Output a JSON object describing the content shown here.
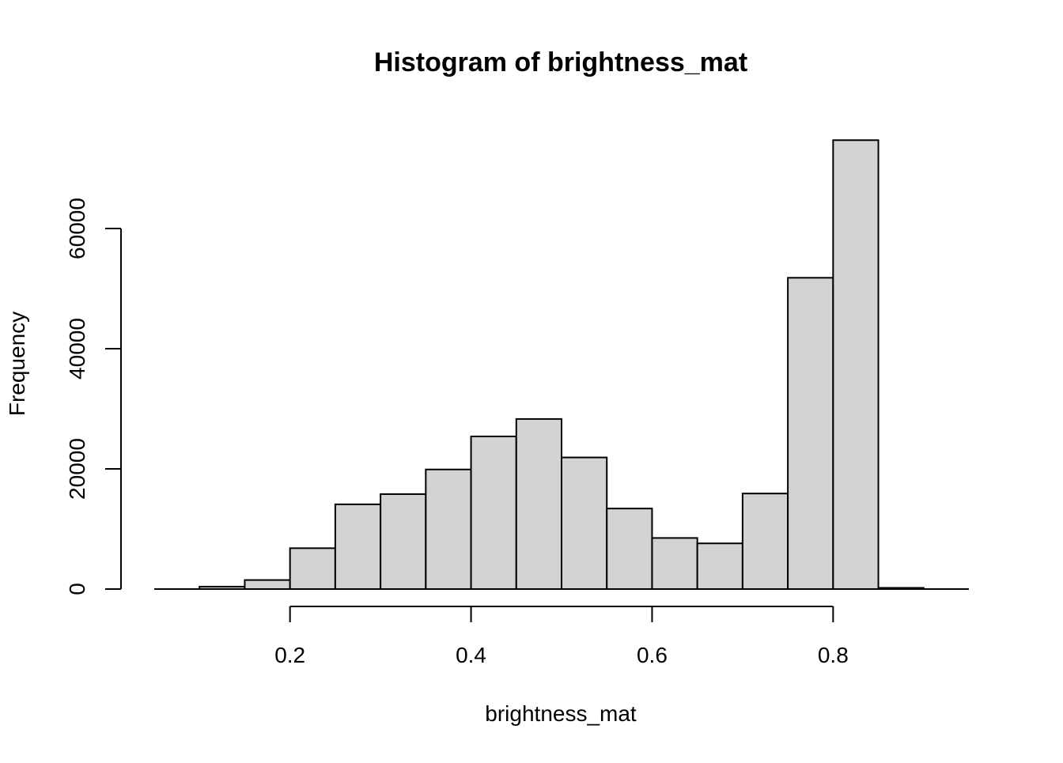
{
  "chart_data": {
    "type": "bar",
    "title": "Histogram of brightness_mat",
    "xlabel": "brightness_mat",
    "ylabel": "Frequency",
    "bin_edges": [
      0.1,
      0.15,
      0.2,
      0.25,
      0.3,
      0.35,
      0.4,
      0.45,
      0.5,
      0.55,
      0.6,
      0.65,
      0.7,
      0.75,
      0.8,
      0.85,
      0.9
    ],
    "values": [
      400,
      1500,
      6800,
      14100,
      15800,
      19900,
      25400,
      28300,
      21900,
      13400,
      8500,
      7600,
      15900,
      51800,
      74700,
      200
    ],
    "xlim": [
      0.05,
      0.95
    ],
    "ylim": [
      0,
      75000
    ],
    "x_ticks": [
      0.2,
      0.4,
      0.6,
      0.8
    ],
    "x_tick_labels": [
      "0.2",
      "0.4",
      "0.6",
      "0.8"
    ],
    "y_ticks": [
      0,
      20000,
      40000,
      60000
    ],
    "y_tick_labels": [
      "0",
      "20000",
      "40000",
      "60000"
    ],
    "bar_fill": "#d3d3d3",
    "bar_stroke": "#000000",
    "grid": false,
    "legend": "none"
  }
}
